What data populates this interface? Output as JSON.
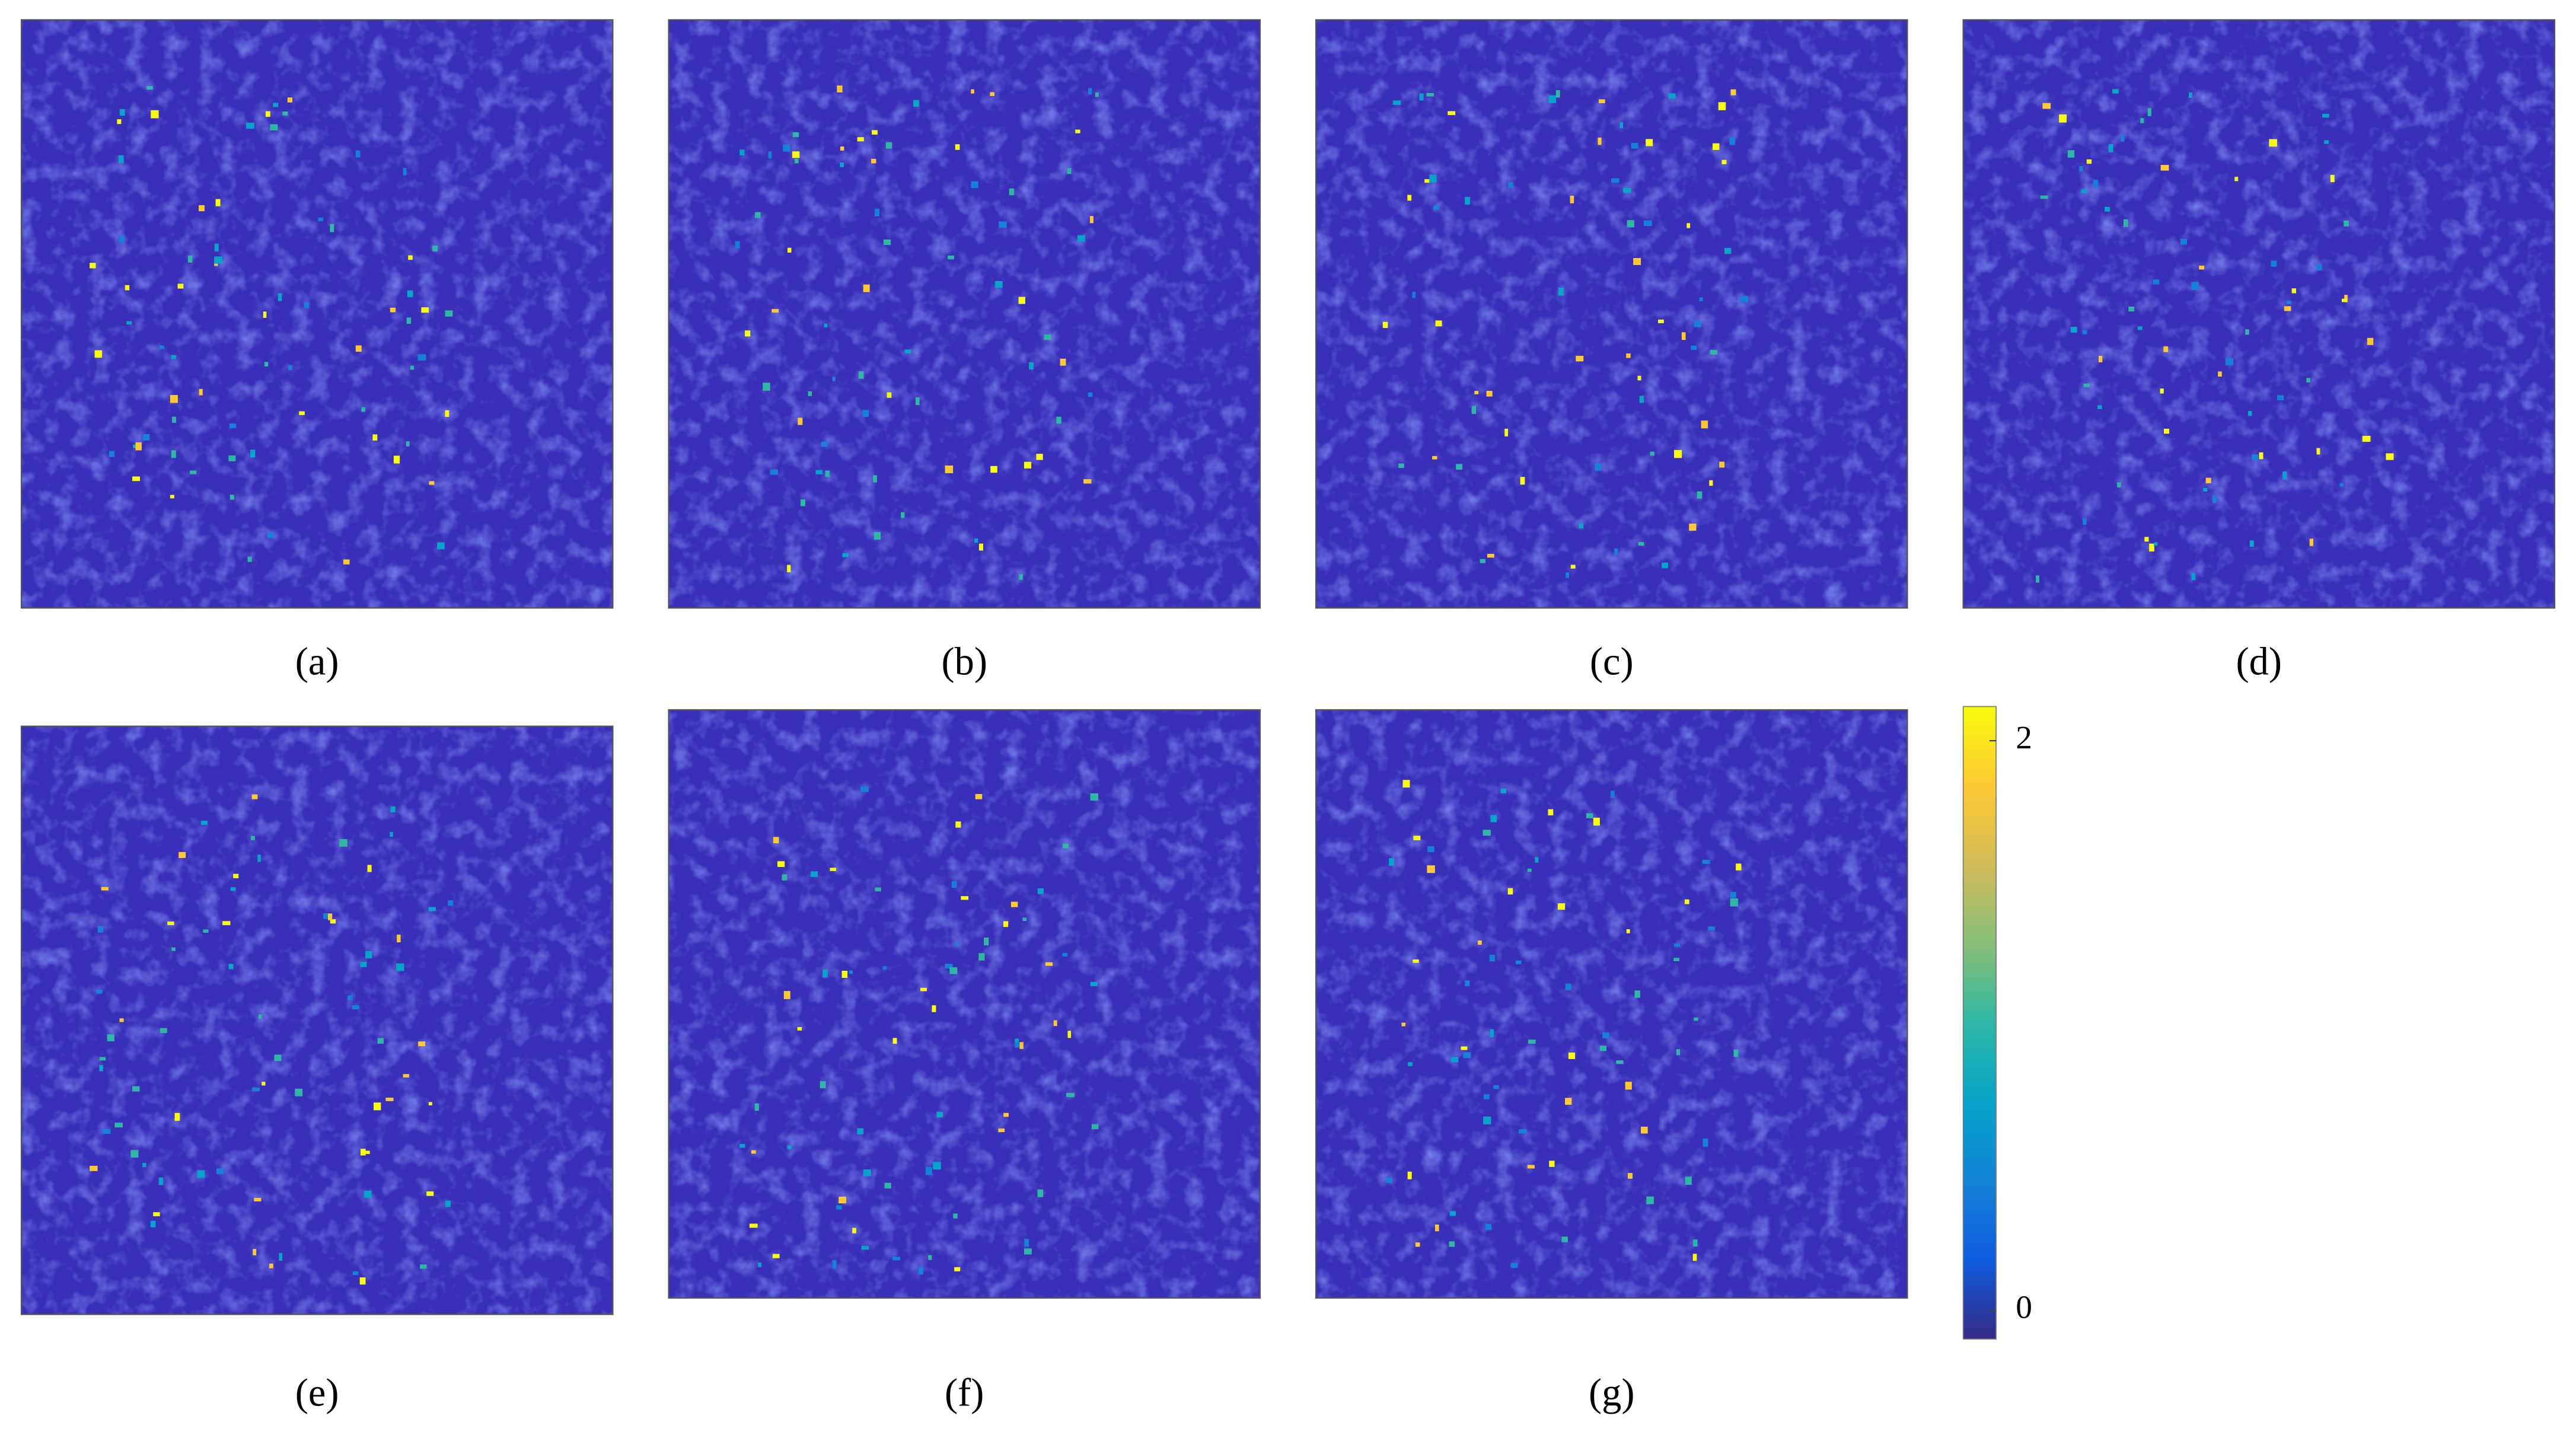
{
  "chart_data": {
    "type": "heatmap-panels",
    "panels": [
      "(a)",
      "(b)",
      "(c)",
      "(d)",
      "(e)",
      "(f)",
      "(g)"
    ],
    "colorbar": {
      "lim": [
        -0.1,
        2.12
      ],
      "ticks": [
        0,
        2
      ],
      "colors": [
        "#352a87",
        "#0f5cdd",
        "#1481d6",
        "#06a4ca",
        "#2eb7a4",
        "#87bf77",
        "#d1bb59",
        "#fec832",
        "#f9fb0e"
      ]
    }
  }
}
